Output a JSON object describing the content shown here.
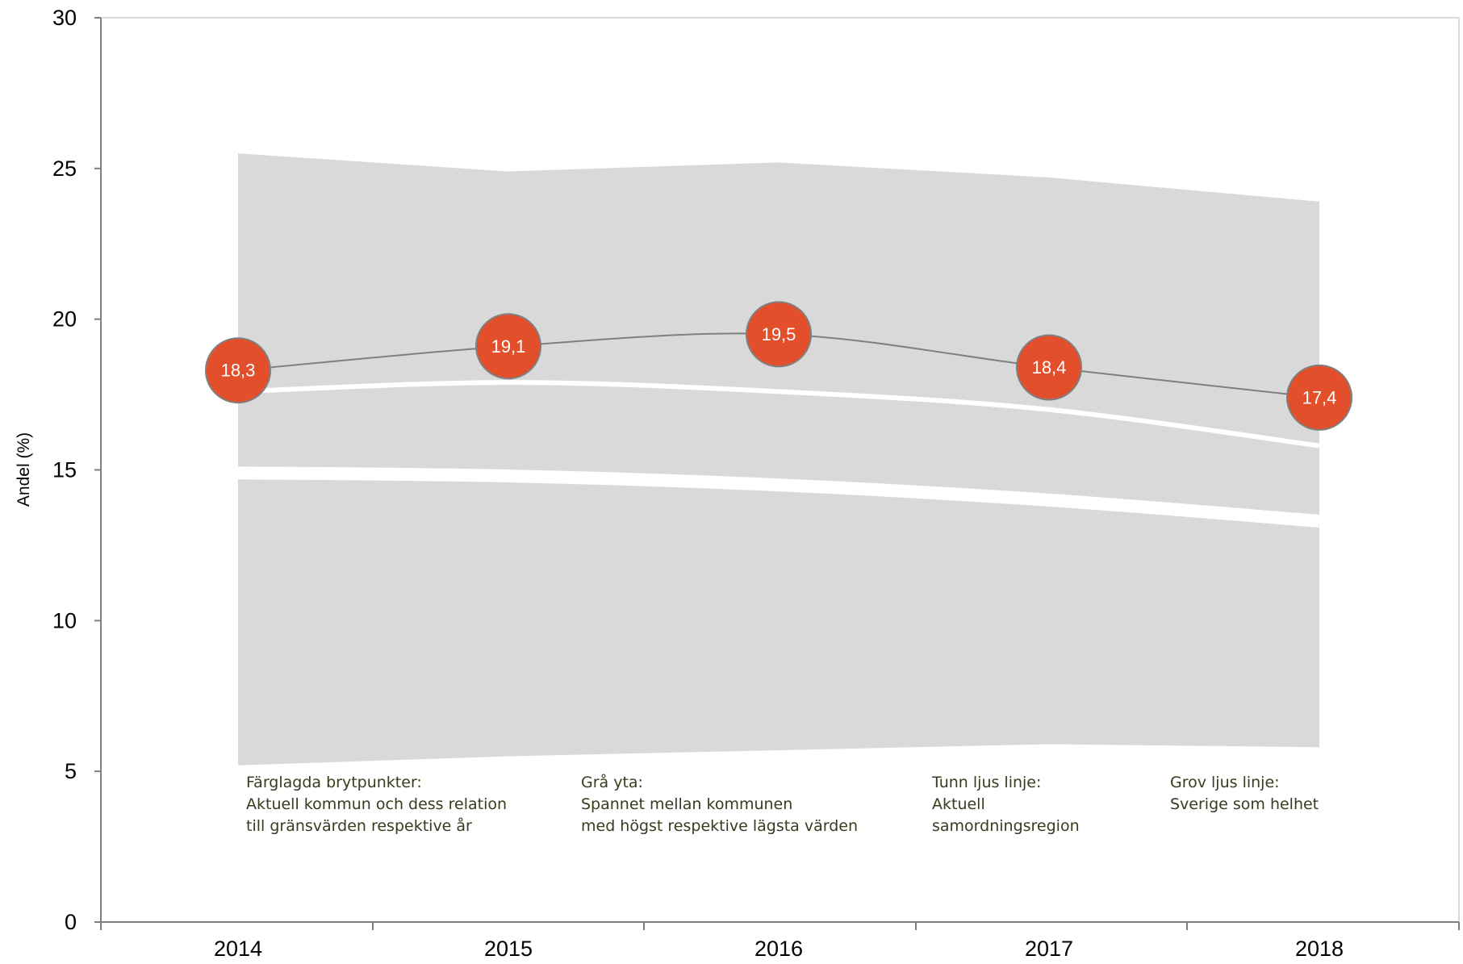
{
  "chart_data": {
    "type": "line",
    "title": "",
    "ylabel": "Andel (%)",
    "xlabel": "",
    "ylim": [
      0,
      30
    ],
    "y_ticks": [
      "0",
      "5",
      "10",
      "15",
      "20",
      "25",
      "30"
    ],
    "categories": [
      "2014",
      "2015",
      "2016",
      "2017",
      "2018"
    ],
    "grid": false,
    "series": [
      {
        "role": "range band (gray area)",
        "upper": [
          25.5,
          24.9,
          25.2,
          24.7,
          23.9
        ],
        "lower": [
          5.2,
          5.5,
          5.7,
          5.9,
          5.8
        ],
        "color": "#d9d9d9"
      },
      {
        "role": "thin light line",
        "values": [
          17.6,
          17.9,
          17.6,
          17.0,
          15.8
        ],
        "color": "#ffffff"
      },
      {
        "role": "thick light line",
        "values": [
          14.9,
          14.8,
          14.5,
          14.0,
          13.3
        ],
        "color": "#ffffff"
      },
      {
        "role": "colored breakpoints",
        "values": [
          18.3,
          19.1,
          19.5,
          18.4,
          17.4
        ],
        "labels": [
          "18,3",
          "19,1",
          "19,5",
          "18,4",
          "17,4"
        ],
        "line_color": "#7f7f7f",
        "marker_color": "#e34e2b"
      }
    ],
    "annotations": [
      {
        "at": "2014",
        "lines": [
          "Färglagda brytpunkter:",
          "Aktuell kommun och dess relation",
          "till gränsvärden respektive år"
        ]
      },
      {
        "at": "2015.4",
        "lines": [
          "Grå yta:",
          "Spannet mellan kommunen",
          "med högst respektive lägsta värden"
        ]
      },
      {
        "at": "2016.55",
        "lines": [
          "Tunn ljus linje:",
          "Aktuell",
          "samordningsregion"
        ]
      },
      {
        "at": "2017.5",
        "lines": [
          "Grov ljus linje:",
          "Sverige som helhet"
        ]
      }
    ]
  }
}
